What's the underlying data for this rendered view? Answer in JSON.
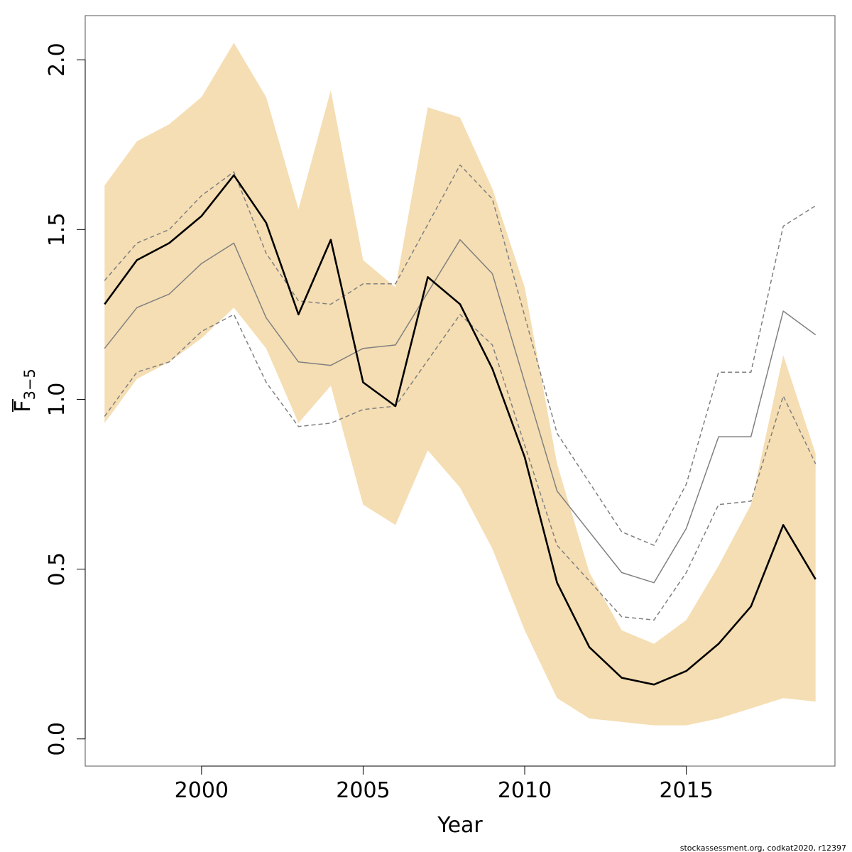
{
  "chart_data": {
    "type": "line",
    "xlabel": "Year",
    "ylabel": {
      "main": "F",
      "subscript": "3−5",
      "overline": true
    },
    "xlim": [
      1996.4,
      2019.6
    ],
    "ylim": [
      -0.08,
      2.13
    ],
    "x_ticks": [
      2000,
      2005,
      2010,
      2015
    ],
    "y_ticks": [
      0.0,
      0.5,
      1.0,
      1.5,
      2.0
    ],
    "x_tick_labels": [
      "2000",
      "2005",
      "2010",
      "2015"
    ],
    "y_tick_labels": [
      "0.0",
      "0.5",
      "1.0",
      "1.5",
      "2.0"
    ],
    "grid": false,
    "colors": {
      "band": "#f5deb3",
      "estimate": "#000000",
      "previous": "#808080",
      "frame": "#555555"
    },
    "x": [
      1997,
      1998,
      1999,
      2000,
      2001,
      2002,
      2003,
      2004,
      2005,
      2006,
      2007,
      2008,
      2009,
      2010,
      2011,
      2012,
      2013,
      2014,
      2015,
      2016,
      2017,
      2018,
      2019
    ],
    "series": [
      {
        "role": "estimate",
        "values": [
          1.28,
          1.41,
          1.46,
          1.54,
          1.66,
          1.52,
          1.25,
          1.47,
          1.05,
          0.98,
          1.36,
          1.28,
          1.09,
          0.83,
          0.46,
          0.27,
          0.18,
          0.16,
          0.2,
          0.28,
          0.39,
          0.63,
          0.47
        ]
      },
      {
        "role": "previous",
        "values": [
          1.15,
          1.27,
          1.31,
          1.4,
          1.46,
          1.24,
          1.11,
          1.1,
          1.15,
          1.16,
          null,
          1.47,
          1.37,
          null,
          0.73,
          null,
          0.49,
          0.46,
          0.62,
          0.89,
          0.89,
          1.26,
          1.19
        ]
      },
      {
        "role": "previous-upper",
        "values": [
          1.35,
          1.46,
          1.5,
          1.6,
          1.67,
          1.43,
          1.29,
          1.28,
          1.34,
          1.34,
          null,
          1.69,
          1.59,
          null,
          0.9,
          null,
          0.61,
          0.57,
          0.75,
          1.08,
          1.08,
          1.51,
          1.57
        ]
      },
      {
        "role": "previous-lower",
        "values": [
          0.95,
          1.08,
          1.11,
          1.2,
          1.25,
          1.05,
          0.92,
          0.93,
          0.97,
          0.98,
          null,
          1.25,
          1.16,
          null,
          0.57,
          null,
          0.36,
          0.35,
          0.49,
          0.69,
          0.7,
          1.01,
          0.81
        ]
      }
    ],
    "band": {
      "lower": [
        0.93,
        1.06,
        1.11,
        1.18,
        1.27,
        1.15,
        0.93,
        1.04,
        0.69,
        0.63,
        0.85,
        0.74,
        0.56,
        0.32,
        0.12,
        0.06,
        0.05,
        0.04,
        0.04,
        0.06,
        0.09,
        0.12,
        0.11
      ],
      "upper": [
        1.63,
        1.76,
        1.81,
        1.89,
        2.05,
        1.89,
        1.56,
        1.91,
        1.41,
        1.33,
        1.86,
        1.83,
        1.62,
        1.33,
        0.81,
        0.49,
        0.32,
        0.28,
        0.35,
        0.51,
        0.69,
        1.13,
        0.84
      ]
    }
  },
  "footer": {
    "credit": "stockassessment.org, codkat2020, r12397"
  }
}
